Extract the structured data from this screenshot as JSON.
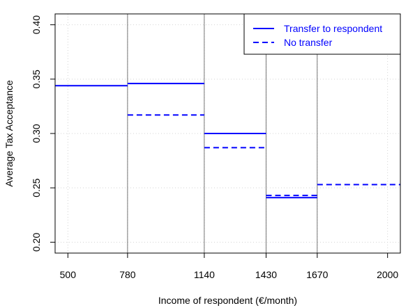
{
  "chart_data": {
    "type": "line",
    "xlabel": "Income of respondent (€/month)",
    "ylabel": "Average Tax Acceptance",
    "xlim": [
      440,
      2060
    ],
    "ylim": [
      0.19,
      0.41
    ],
    "x_ticks": [
      {
        "value": 500,
        "label": "500"
      },
      {
        "value": 780,
        "label": "780"
      },
      {
        "value": 1140,
        "label": "1140"
      },
      {
        "value": 1430,
        "label": "1430"
      },
      {
        "value": 1670,
        "label": "1670"
      },
      {
        "value": 2000,
        "label": "2000"
      }
    ],
    "y_ticks": [
      {
        "value": 0.2,
        "label": "0.20"
      },
      {
        "value": 0.25,
        "label": "0.25"
      },
      {
        "value": 0.3,
        "label": "0.30"
      },
      {
        "value": 0.35,
        "label": "0.35"
      },
      {
        "value": 0.4,
        "label": "0.40"
      }
    ],
    "grid": true,
    "vertical_lines": [
      780,
      1140,
      1430,
      1670
    ],
    "legend": {
      "position": "top-right"
    },
    "series": [
      {
        "name": "Transfer to respondent",
        "style": "solid",
        "color": "#0000ff",
        "segments": [
          {
            "x0": 440,
            "x1": 780,
            "y": 0.344
          },
          {
            "x0": 780,
            "x1": 1140,
            "y": 0.346
          },
          {
            "x0": 1140,
            "x1": 1430,
            "y": 0.3
          },
          {
            "x0": 1430,
            "x1": 1670,
            "y": 0.241
          }
        ]
      },
      {
        "name": "No transfer",
        "style": "dashed",
        "color": "#0000ff",
        "segments": [
          {
            "x0": 780,
            "x1": 1140,
            "y": 0.317
          },
          {
            "x0": 1140,
            "x1": 1430,
            "y": 0.287
          },
          {
            "x0": 1430,
            "x1": 1670,
            "y": 0.243
          },
          {
            "x0": 1670,
            "x1": 2060,
            "y": 0.253
          }
        ]
      }
    ]
  }
}
